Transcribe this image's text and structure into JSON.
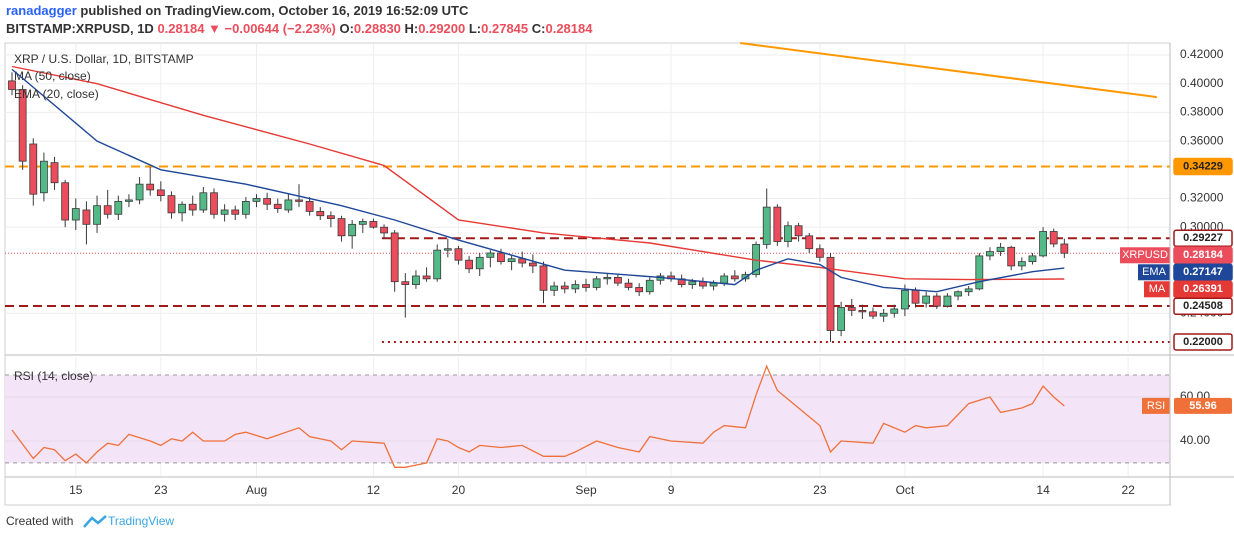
{
  "header": {
    "author": "ranadagger",
    "published": " published on TradingView.com, October 16, 2019 16:52:09 UTC",
    "symbol": "BITSTAMP:XRPUSD, 1D ",
    "last": "0.28184",
    "arrow": " ▼ ",
    "change": "−0.00644 (−2.23%)",
    "ohlc": [
      {
        "key": " O:",
        "value": "0.28830"
      },
      {
        "key": " H:",
        "value": "0.29200"
      },
      {
        "key": " L:",
        "value": "0.27845"
      },
      {
        "key": " C:",
        "value": "0.28184"
      }
    ]
  },
  "footer": {
    "created": "Created with",
    "brand": "TradingView"
  },
  "chart_data": [
    {
      "type": "candlestick",
      "title": "XRP / U.S. Dollar, 1D, BITSTAMP",
      "up_color": "#53b987",
      "down_color": "#eb4d5c",
      "candles": [
        [
          0.402,
          0.408,
          0.392,
          0.396
        ],
        [
          0.396,
          0.399,
          0.34,
          0.346
        ],
        [
          0.358,
          0.362,
          0.315,
          0.323
        ],
        [
          0.324,
          0.352,
          0.318,
          0.346
        ],
        [
          0.345,
          0.349,
          0.326,
          0.331
        ],
        [
          0.331,
          0.333,
          0.3,
          0.305
        ],
        [
          0.305,
          0.32,
          0.298,
          0.313
        ],
        [
          0.312,
          0.318,
          0.288,
          0.302
        ],
        [
          0.302,
          0.322,
          0.296,
          0.315
        ],
        [
          0.315,
          0.326,
          0.306,
          0.309
        ],
        [
          0.309,
          0.322,
          0.305,
          0.318
        ],
        [
          0.318,
          0.323,
          0.314,
          0.319
        ],
        [
          0.319,
          0.335,
          0.316,
          0.33
        ],
        [
          0.33,
          0.342,
          0.322,
          0.326
        ],
        [
          0.326,
          0.332,
          0.318,
          0.322
        ],
        [
          0.322,
          0.325,
          0.306,
          0.31
        ],
        [
          0.31,
          0.318,
          0.304,
          0.316
        ],
        [
          0.316,
          0.322,
          0.308,
          0.312
        ],
        [
          0.312,
          0.328,
          0.31,
          0.324
        ],
        [
          0.324,
          0.327,
          0.306,
          0.309
        ],
        [
          0.309,
          0.316,
          0.304,
          0.312
        ],
        [
          0.312,
          0.315,
          0.305,
          0.309
        ],
        [
          0.309,
          0.321,
          0.306,
          0.318
        ],
        [
          0.318,
          0.323,
          0.314,
          0.32
        ],
        [
          0.32,
          0.324,
          0.312,
          0.316
        ],
        [
          0.316,
          0.32,
          0.31,
          0.313
        ],
        [
          0.312,
          0.323,
          0.31,
          0.319
        ],
        [
          0.319,
          0.33,
          0.314,
          0.318
        ],
        [
          0.318,
          0.321,
          0.308,
          0.311
        ],
        [
          0.311,
          0.314,
          0.305,
          0.308
        ],
        [
          0.308,
          0.311,
          0.3,
          0.306
        ],
        [
          0.306,
          0.308,
          0.29,
          0.294
        ],
        [
          0.294,
          0.305,
          0.285,
          0.302
        ],
        [
          0.302,
          0.306,
          0.296,
          0.304
        ],
        [
          0.304,
          0.306,
          0.299,
          0.3
        ],
        [
          0.3,
          0.302,
          0.292,
          0.296
        ],
        [
          0.296,
          0.298,
          0.255,
          0.262
        ],
        [
          0.262,
          0.268,
          0.237,
          0.26
        ],
        [
          0.26,
          0.27,
          0.257,
          0.266
        ],
        [
          0.266,
          0.272,
          0.262,
          0.264
        ],
        [
          0.264,
          0.288,
          0.262,
          0.284
        ],
        [
          0.284,
          0.292,
          0.279,
          0.285
        ],
        [
          0.285,
          0.287,
          0.274,
          0.277
        ],
        [
          0.277,
          0.28,
          0.268,
          0.271
        ],
        [
          0.271,
          0.282,
          0.266,
          0.279
        ],
        [
          0.279,
          0.284,
          0.272,
          0.282
        ],
        [
          0.282,
          0.285,
          0.274,
          0.276
        ],
        [
          0.276,
          0.281,
          0.27,
          0.278
        ],
        [
          0.278,
          0.283,
          0.272,
          0.275
        ],
        [
          0.275,
          0.281,
          0.268,
          0.273
        ],
        [
          0.273,
          0.276,
          0.247,
          0.256
        ],
        [
          0.256,
          0.262,
          0.252,
          0.259
        ],
        [
          0.259,
          0.262,
          0.254,
          0.257
        ],
        [
          0.257,
          0.263,
          0.254,
          0.26
        ],
        [
          0.26,
          0.264,
          0.255,
          0.258
        ],
        [
          0.258,
          0.266,
          0.256,
          0.264
        ],
        [
          0.264,
          0.268,
          0.26,
          0.265
        ],
        [
          0.265,
          0.267,
          0.259,
          0.261
        ],
        [
          0.261,
          0.264,
          0.256,
          0.258
        ],
        [
          0.258,
          0.261,
          0.252,
          0.255
        ],
        [
          0.255,
          0.265,
          0.253,
          0.263
        ],
        [
          0.263,
          0.268,
          0.26,
          0.266
        ],
        [
          0.266,
          0.269,
          0.262,
          0.264
        ],
        [
          0.264,
          0.267,
          0.258,
          0.26
        ],
        [
          0.26,
          0.264,
          0.257,
          0.262
        ],
        [
          0.262,
          0.265,
          0.257,
          0.259
        ],
        [
          0.259,
          0.263,
          0.256,
          0.261
        ],
        [
          0.261,
          0.268,
          0.259,
          0.266
        ],
        [
          0.266,
          0.27,
          0.262,
          0.264
        ],
        [
          0.264,
          0.269,
          0.262,
          0.267
        ],
        [
          0.267,
          0.29,
          0.265,
          0.288
        ],
        [
          0.288,
          0.327,
          0.285,
          0.314
        ],
        [
          0.314,
          0.316,
          0.287,
          0.29
        ],
        [
          0.29,
          0.304,
          0.286,
          0.301
        ],
        [
          0.301,
          0.303,
          0.29,
          0.294
        ],
        [
          0.294,
          0.296,
          0.282,
          0.285
        ],
        [
          0.285,
          0.288,
          0.276,
          0.279
        ],
        [
          0.279,
          0.282,
          0.22,
          0.228
        ],
        [
          0.228,
          0.248,
          0.224,
          0.244
        ],
        [
          0.244,
          0.25,
          0.238,
          0.242
        ],
        [
          0.242,
          0.246,
          0.236,
          0.241
        ],
        [
          0.241,
          0.244,
          0.236,
          0.238
        ],
        [
          0.238,
          0.243,
          0.234,
          0.24
        ],
        [
          0.24,
          0.246,
          0.237,
          0.243
        ],
        [
          0.243,
          0.26,
          0.238,
          0.256
        ],
        [
          0.256,
          0.258,
          0.244,
          0.247
        ],
        [
          0.247,
          0.255,
          0.244,
          0.252
        ],
        [
          0.252,
          0.254,
          0.243,
          0.245
        ],
        [
          0.245,
          0.254,
          0.244,
          0.252
        ],
        [
          0.252,
          0.256,
          0.249,
          0.255
        ],
        [
          0.255,
          0.259,
          0.252,
          0.257
        ],
        [
          0.257,
          0.282,
          0.256,
          0.28
        ],
        [
          0.28,
          0.286,
          0.277,
          0.283
        ],
        [
          0.283,
          0.289,
          0.28,
          0.286
        ],
        [
          0.286,
          0.287,
          0.27,
          0.273
        ],
        [
          0.273,
          0.279,
          0.27,
          0.276
        ],
        [
          0.276,
          0.282,
          0.274,
          0.28
        ],
        [
          0.28,
          0.3,
          0.279,
          0.297
        ],
        [
          0.297,
          0.299,
          0.286,
          0.2883
        ],
        [
          0.2883,
          0.292,
          0.27845,
          0.28184
        ]
      ],
      "xlim": [
        -0.66,
        108.94
      ],
      "ylim": [
        0.213,
        0.4284
      ],
      "yticks": [
        {
          "value": 0.42,
          "label": "0.42000"
        },
        {
          "value": 0.4,
          "label": "0.40000"
        },
        {
          "value": 0.38,
          "label": "0.38000"
        },
        {
          "value": 0.36,
          "label": "0.36000"
        },
        {
          "value": 0.32,
          "label": "0.32000"
        },
        {
          "value": 0.3,
          "label": "0.30000"
        },
        {
          "value": 0.24,
          "label": "0.24000"
        }
      ],
      "grid": true,
      "last_price": {
        "name": "XRPUSD",
        "color": "#eb4d5c"
      },
      "series": [
        {
          "name": "MA (50, close)",
          "badge": "MA",
          "color": "#e53935",
          "x": [
            0,
            8,
            18,
            28,
            35,
            42,
            50,
            60,
            70,
            76,
            84,
            90,
            99
          ],
          "values": [
            0.412,
            0.4,
            0.378,
            0.358,
            0.343,
            0.305,
            0.296,
            0.289,
            0.277,
            0.272,
            0.264,
            0.2635,
            0.26391
          ]
        },
        {
          "name": "EMA (20, close)",
          "badge": "EMA",
          "color": "#1e4799",
          "x": [
            0,
            8,
            14,
            22,
            31,
            36,
            42,
            52,
            61,
            68,
            70,
            73,
            76,
            78,
            82,
            87,
            91,
            96,
            99
          ],
          "values": [
            0.41,
            0.36,
            0.34,
            0.33,
            0.315,
            0.305,
            0.291,
            0.27,
            0.265,
            0.26,
            0.27,
            0.278,
            0.274,
            0.265,
            0.258,
            0.255,
            0.262,
            0.269,
            0.27147
          ]
        }
      ],
      "levels": [
        {
          "value": 0.34229,
          "color": "#ff9800",
          "style": "dashed"
        },
        {
          "value": 0.29227,
          "color": "#a11a1a",
          "style": "dashed",
          "from": 34.8
        },
        {
          "value": 0.24508,
          "color": "#a11a1a",
          "style": "dashed"
        },
        {
          "value": 0.22,
          "label": "0.22000",
          "color": "#a11a1a",
          "style": "dotted",
          "from": 34.8
        }
      ],
      "trendline": {
        "color": "#ff9800",
        "x": [
          68.5,
          107.7
        ],
        "values": [
          0.4284,
          0.3907
        ]
      }
    },
    {
      "type": "line",
      "title": "RSI (14, close)",
      "xlim": [
        -0.66,
        108.94
      ],
      "xticks": [
        {
          "value": 6,
          "label": "15"
        },
        {
          "value": 14,
          "label": "23"
        },
        {
          "value": 23,
          "label": "Aug"
        },
        {
          "value": 34,
          "label": "12"
        },
        {
          "value": 42,
          "label": "20"
        },
        {
          "value": 54,
          "label": "Sep"
        },
        {
          "value": 62,
          "label": "9"
        },
        {
          "value": 76,
          "label": "23"
        },
        {
          "value": 84,
          "label": "Oct"
        },
        {
          "value": 97,
          "label": "14"
        },
        {
          "value": 105,
          "label": "22"
        }
      ],
      "ylim": [
        23.6,
        78.2
      ],
      "yticks": [
        {
          "value": 40,
          "label": "40.00"
        },
        {
          "value": 60,
          "label": "60.00"
        }
      ],
      "bands": [
        30,
        70
      ],
      "band_color": "#f3e5f7",
      "series": [
        {
          "name": "RSI",
          "color": "#f0703a",
          "x": [
            0,
            2,
            3,
            4,
            5,
            6,
            7,
            8,
            9,
            10,
            11,
            13,
            14,
            15,
            16,
            17,
            18,
            20,
            21,
            22,
            24,
            27,
            28,
            30,
            31,
            32,
            35,
            36,
            37,
            38,
            39,
            40,
            41,
            42,
            43,
            44,
            46,
            48,
            50,
            52,
            53,
            55,
            57,
            59,
            60,
            62,
            65,
            66,
            67,
            69,
            70,
            71,
            72,
            74,
            76,
            77,
            78,
            81,
            82,
            84,
            85,
            86,
            88,
            90,
            92,
            93,
            95,
            96,
            97,
            98,
            99
          ],
          "values": [
            45,
            32,
            37,
            36,
            31,
            34,
            30,
            35,
            39,
            38,
            43,
            40,
            38,
            41,
            40,
            44,
            40,
            40,
            43,
            44,
            41,
            46,
            42,
            40,
            36,
            40,
            39,
            28,
            28,
            29,
            30,
            41,
            40,
            37,
            35,
            38,
            37,
            38,
            33,
            33,
            35,
            40,
            37,
            35,
            42,
            40,
            39,
            44,
            47,
            46,
            61,
            74,
            63,
            55,
            47,
            35,
            40,
            39,
            48,
            44,
            47,
            46,
            47,
            57,
            60,
            53,
            55,
            57,
            65,
            60,
            55.96
          ]
        }
      ]
    }
  ]
}
